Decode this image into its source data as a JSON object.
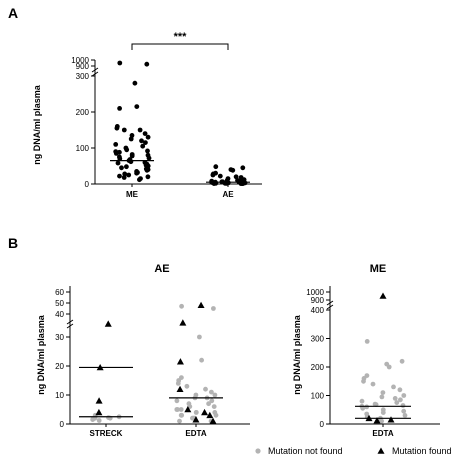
{
  "chart_data": [
    {
      "panel_label": "A",
      "type": "scatter",
      "title": "",
      "ylabel": "ng DNA/ml plasma",
      "categories": [
        "ME",
        "AE"
      ],
      "y_ticks_lower": [
        "0",
        "100",
        "200",
        "300"
      ],
      "y_ticks_upper": [
        "900",
        "1000"
      ],
      "significance": "***",
      "series": [
        {
          "name": "ME",
          "median": 65,
          "values": [
            950,
            930,
            280,
            215,
            210,
            160,
            155,
            150,
            150,
            140,
            135,
            130,
            125,
            120,
            115,
            110,
            105,
            100,
            95,
            92,
            90,
            88,
            85,
            82,
            80,
            78,
            75,
            72,
            70,
            68,
            65,
            62,
            60,
            58,
            55,
            52,
            50,
            48,
            45,
            42,
            40,
            38,
            35,
            32,
            30,
            28,
            25,
            22,
            20,
            18,
            15,
            12
          ]
        },
        {
          "name": "AE",
          "median": 5,
          "values": [
            48,
            45,
            40,
            38,
            30,
            28,
            25,
            22,
            20,
            18,
            15,
            12,
            10,
            10,
            8,
            8,
            7,
            6,
            6,
            5,
            5,
            5,
            4,
            4,
            4,
            3,
            3,
            3,
            2,
            2,
            2,
            2,
            1,
            1,
            1,
            1
          ]
        }
      ]
    },
    {
      "panel_label": "B",
      "type": "scatter",
      "title": "AE",
      "ylabel": "ng DNA/ml plasma",
      "categories": [
        "STRECK",
        "EDTA"
      ],
      "y_ticks_lower": [
        "0",
        "10",
        "20",
        "30"
      ],
      "y_ticks_upper": [
        "40",
        "50",
        "60"
      ],
      "series": [
        {
          "name": "STRECK",
          "medians": [
            19.5,
            2.5
          ],
          "not_found": [
            3,
            2.5,
            2.2,
            2,
            2,
            1.8,
            1.5,
            1.2
          ],
          "found": [
            31,
            19.5,
            8,
            4
          ]
        },
        {
          "name": "EDTA",
          "median": 9,
          "not_found": [
            47,
            45,
            30,
            22,
            16,
            15,
            14,
            13,
            12,
            11,
            10,
            10,
            9,
            9,
            8,
            8,
            7,
            7,
            6,
            6,
            5,
            5,
            5,
            4,
            4,
            4,
            3,
            3,
            3,
            2,
            2,
            2,
            1,
            1
          ],
          "found": [
            48,
            32,
            21.5,
            12,
            5,
            4,
            3,
            1.5,
            1
          ]
        }
      ]
    },
    {
      "panel_label": "",
      "type": "scatter",
      "title": "ME",
      "ylabel": "ng DNA/ml plasma",
      "categories": [
        "EDTA"
      ],
      "y_ticks_lower": [
        "0",
        "100",
        "200",
        "300",
        "400"
      ],
      "y_ticks_upper": [
        "900",
        "1000"
      ],
      "series": [
        {
          "name": "EDTA",
          "medians": [
            62,
            20
          ],
          "not_found": [
            290,
            220,
            210,
            200,
            170,
            160,
            150,
            140,
            130,
            120,
            110,
            100,
            95,
            90,
            85,
            80,
            75,
            70,
            68,
            65,
            62,
            60,
            55,
            50,
            45,
            40,
            35,
            30,
            25,
            20,
            15,
            10
          ],
          "found": [
            950,
            20,
            15,
            12
          ]
        }
      ]
    }
  ],
  "legend": {
    "not_found_label": "Mutation not found",
    "found_label": "Mutation found",
    "not_found_color": "#b3b3b3",
    "found_color": "#000000"
  }
}
